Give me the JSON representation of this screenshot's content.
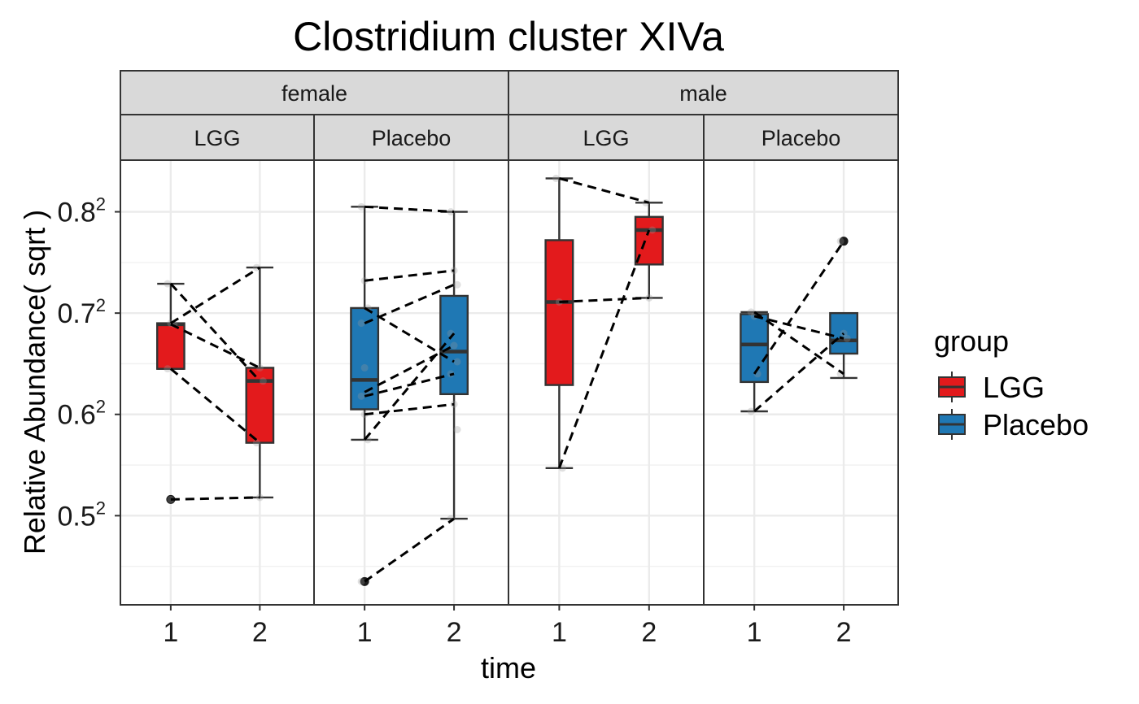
{
  "chart_data": {
    "type": "boxplot",
    "title": "Clostridium cluster XIVa",
    "xlabel": "time",
    "ylabel": "Relative Abundance( sqrt )",
    "y_scale": "sqrt",
    "ylim_sqrt": [
      0.412,
      0.851
    ],
    "y_ticks": [
      {
        "value": 0.5,
        "base": "0.5",
        "exp": "2"
      },
      {
        "value": 0.6,
        "base": "0.6",
        "exp": "2"
      },
      {
        "value": 0.7,
        "base": "0.7",
        "exp": "2"
      },
      {
        "value": 0.8,
        "base": "0.8",
        "exp": "2"
      }
    ],
    "x_categories": [
      "1",
      "2"
    ],
    "sex_strips": [
      "female",
      "male"
    ],
    "group_strips": [
      "LGG",
      "Placebo"
    ],
    "grid": true,
    "legend": {
      "title": "group",
      "position": "right",
      "entries": [
        {
          "label": "LGG",
          "color": "#E31A1C"
        },
        {
          "label": "Placebo",
          "color": "#1F78B4"
        }
      ]
    },
    "panels": [
      {
        "sex": "female",
        "group": "LGG",
        "boxes": [
          {
            "time": "1",
            "lower_whisker": 0.645,
            "q1": 0.645,
            "median": 0.689,
            "q3": 0.69,
            "upper_whisker": 0.729,
            "outliers": [
              0.516
            ]
          },
          {
            "time": "2",
            "lower_whisker": 0.518,
            "q1": 0.572,
            "median": 0.633,
            "q3": 0.646,
            "upper_whisker": 0.745,
            "outliers": []
          }
        ],
        "points": {
          "1": [
            0.729,
            0.69,
            0.689,
            0.645,
            0.516
          ],
          "2": [
            0.745,
            0.646,
            0.633,
            0.572,
            0.518
          ]
        },
        "pairs": [
          [
            0.729,
            0.633
          ],
          [
            0.69,
            0.745
          ],
          [
            0.689,
            0.646
          ],
          [
            0.645,
            0.572
          ],
          [
            0.516,
            0.518
          ]
        ]
      },
      {
        "sex": "female",
        "group": "Placebo",
        "boxes": [
          {
            "time": "1",
            "lower_whisker": 0.575,
            "q1": 0.605,
            "median": 0.634,
            "q3": 0.705,
            "upper_whisker": 0.805,
            "outliers": [
              0.435
            ]
          },
          {
            "time": "2",
            "lower_whisker": 0.497,
            "q1": 0.62,
            "median": 0.662,
            "q3": 0.717,
            "upper_whisker": 0.8,
            "outliers": []
          }
        ],
        "points": {
          "1": [
            0.805,
            0.732,
            0.705,
            0.69,
            0.646,
            0.622,
            0.618,
            0.6,
            0.575,
            0.435
          ],
          "2": [
            0.8,
            0.742,
            0.728,
            0.68,
            0.668,
            0.652,
            0.64,
            0.61,
            0.585,
            0.497
          ]
        },
        "pairs": [
          [
            0.805,
            0.8
          ],
          [
            0.732,
            0.742
          ],
          [
            0.705,
            0.652
          ],
          [
            0.69,
            0.728
          ],
          [
            0.622,
            0.668
          ],
          [
            0.618,
            0.64
          ],
          [
            0.6,
            0.61
          ],
          [
            0.575,
            0.68
          ],
          [
            0.435,
            0.497
          ]
        ]
      },
      {
        "sex": "male",
        "group": "LGG",
        "boxes": [
          {
            "time": "1",
            "lower_whisker": 0.547,
            "q1": 0.629,
            "median": 0.711,
            "q3": 0.772,
            "upper_whisker": 0.833,
            "outliers": []
          },
          {
            "time": "2",
            "lower_whisker": 0.715,
            "q1": 0.748,
            "median": 0.782,
            "q3": 0.795,
            "upper_whisker": 0.809,
            "outliers": []
          }
        ],
        "points": {
          "1": [
            0.833,
            0.711,
            0.547
          ],
          "2": [
            0.809,
            0.715,
            0.782
          ]
        },
        "pairs": [
          [
            0.833,
            0.809
          ],
          [
            0.711,
            0.715
          ],
          [
            0.547,
            0.782
          ]
        ]
      },
      {
        "sex": "male",
        "group": "Placebo",
        "boxes": [
          {
            "time": "1",
            "lower_whisker": 0.603,
            "q1": 0.632,
            "median": 0.669,
            "q3": 0.699,
            "upper_whisker": 0.701,
            "outliers": []
          },
          {
            "time": "2",
            "lower_whisker": 0.636,
            "q1": 0.66,
            "median": 0.673,
            "q3": 0.7,
            "upper_whisker": 0.7,
            "outliers": [
              0.771
            ]
          }
        ],
        "points": {
          "1": [
            0.701,
            0.697,
            0.64,
            0.603
          ],
          "2": [
            0.771,
            0.68,
            0.675,
            0.64
          ]
        },
        "pairs": [
          [
            0.697,
            0.675
          ],
          [
            0.701,
            0.64
          ],
          [
            0.64,
            0.771
          ],
          [
            0.603,
            0.68
          ]
        ]
      }
    ]
  }
}
